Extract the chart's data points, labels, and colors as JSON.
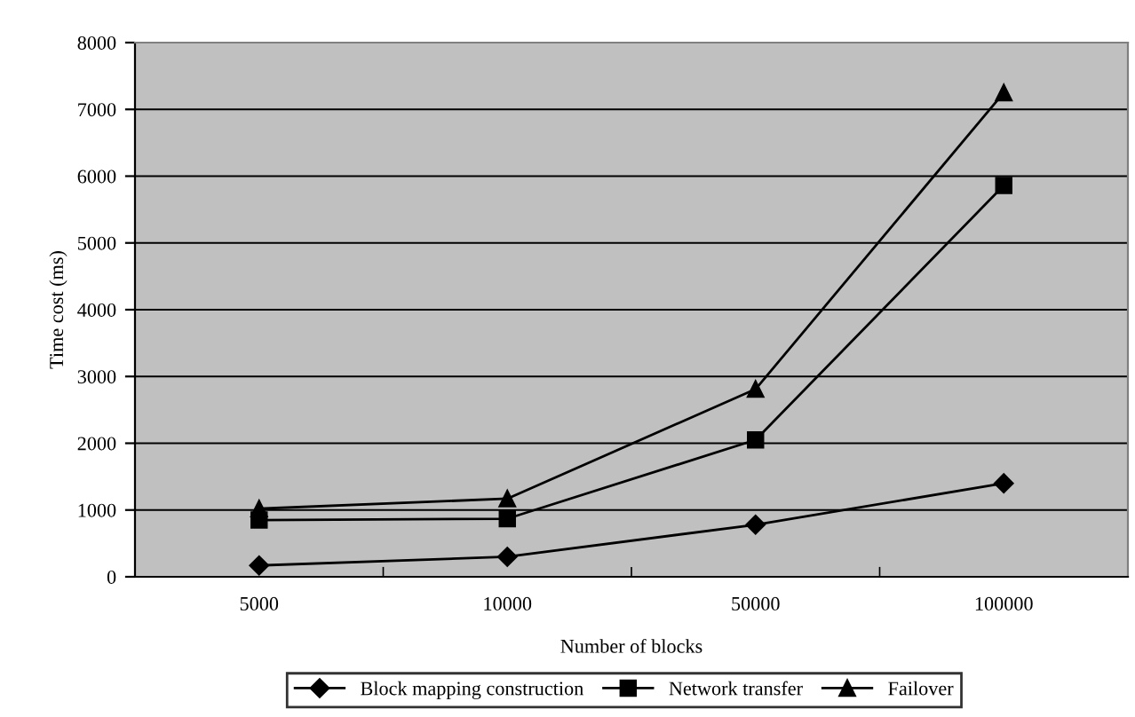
{
  "chart_data": {
    "type": "line",
    "xlabel": "Number of blocks",
    "ylabel": "Time cost (ms)",
    "categories": [
      "5000",
      "10000",
      "50000",
      "100000"
    ],
    "series": [
      {
        "name": "Block mapping construction",
        "color": "#000000",
        "marker": "diamond",
        "values": [
          170,
          300,
          780,
          1400
        ]
      },
      {
        "name": "Network transfer",
        "color": "#000000",
        "marker": "square",
        "values": [
          850,
          870,
          2050,
          5860
        ]
      },
      {
        "name": "Failover",
        "color": "#000000",
        "marker": "triangle",
        "values": [
          1020,
          1170,
          2810,
          7250
        ]
      }
    ],
    "ylim": [
      0,
      8000
    ],
    "yticks": [
      0,
      1000,
      2000,
      3000,
      4000,
      5000,
      6000,
      7000,
      8000
    ],
    "grid": "y",
    "legend": "bottom",
    "line_style": "solid"
  }
}
